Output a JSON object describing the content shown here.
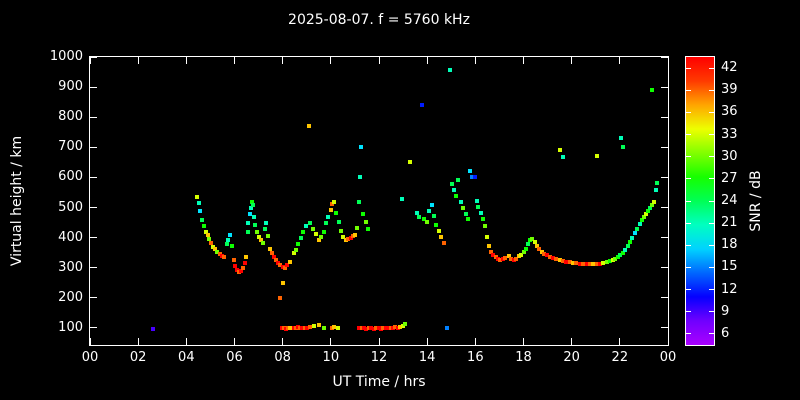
{
  "chart_data": {
    "type": "scatter",
    "title": "2025-08-07. f = 5760 kHz",
    "xlabel": "UT Time / hrs",
    "ylabel": "Virtual height / km",
    "colorbar_label": "SNR / dB",
    "x_range_hours": [
      0,
      24
    ],
    "y_range_km": [
      100,
      1000
    ],
    "x_tick_labels": [
      "00",
      "02",
      "04",
      "06",
      "08",
      "10",
      "12",
      "14",
      "16",
      "18",
      "20",
      "22",
      "00"
    ],
    "x_tick_values": [
      0,
      2,
      4,
      6,
      8,
      10,
      12,
      14,
      16,
      18,
      20,
      22,
      24
    ],
    "y_tick_values": [
      100,
      200,
      300,
      400,
      500,
      600,
      700,
      800,
      900,
      1000
    ],
    "colorbar_tick_values": [
      6,
      9,
      12,
      15,
      18,
      21,
      24,
      27,
      30,
      33,
      36,
      39,
      42
    ],
    "snr_scale_range": [
      4.5,
      43.5
    ],
    "colormap": "rainbow",
    "background_color": "#000000",
    "text_color": "#ffffff",
    "points_format": [
      "ut_hours",
      "virtual_height_km",
      "snr_db"
    ],
    "points": [
      [
        2.62,
        97,
        9
      ],
      [
        4.45,
        535,
        33
      ],
      [
        4.52,
        515,
        21
      ],
      [
        4.58,
        490,
        18
      ],
      [
        4.65,
        460,
        24
      ],
      [
        4.72,
        440,
        27
      ],
      [
        4.8,
        420,
        33
      ],
      [
        4.88,
        408,
        36
      ],
      [
        4.95,
        395,
        30
      ],
      [
        5.02,
        382,
        39
      ],
      [
        5.1,
        370,
        33
      ],
      [
        5.18,
        362,
        36
      ],
      [
        5.28,
        352,
        30
      ],
      [
        5.38,
        345,
        39
      ],
      [
        5.48,
        340,
        42
      ],
      [
        5.58,
        336,
        39
      ],
      [
        5.68,
        378,
        24
      ],
      [
        5.74,
        392,
        21
      ],
      [
        5.82,
        408,
        18
      ],
      [
        5.9,
        372,
        27
      ],
      [
        5.98,
        325,
        39
      ],
      [
        6.04,
        305,
        42
      ],
      [
        6.1,
        292,
        42
      ],
      [
        6.18,
        285,
        39
      ],
      [
        6.26,
        290,
        42
      ],
      [
        6.34,
        300,
        39
      ],
      [
        6.42,
        315,
        42
      ],
      [
        6.48,
        335,
        36
      ],
      [
        6.54,
        420,
        24
      ],
      [
        6.58,
        450,
        21
      ],
      [
        6.63,
        478,
        18
      ],
      [
        6.68,
        500,
        21
      ],
      [
        6.72,
        520,
        27
      ],
      [
        6.77,
        508,
        24
      ],
      [
        6.82,
        470,
        21
      ],
      [
        6.87,
        442,
        24
      ],
      [
        6.94,
        420,
        30
      ],
      [
        7.02,
        402,
        33
      ],
      [
        7.1,
        392,
        36
      ],
      [
        7.18,
        382,
        30
      ],
      [
        7.26,
        428,
        24
      ],
      [
        7.32,
        448,
        21
      ],
      [
        7.4,
        405,
        30
      ],
      [
        7.48,
        362,
        36
      ],
      [
        7.56,
        348,
        39
      ],
      [
        7.64,
        335,
        42
      ],
      [
        7.72,
        325,
        39
      ],
      [
        7.8,
        315,
        42
      ],
      [
        7.88,
        200,
        39
      ],
      [
        7.9,
        308,
        39
      ],
      [
        7.98,
        100,
        42
      ],
      [
        8,
        303,
        42
      ],
      [
        8.02,
        248,
        36
      ],
      [
        8.06,
        100,
        39
      ],
      [
        8.1,
        300,
        39
      ],
      [
        8.14,
        98,
        42
      ],
      [
        8.2,
        308,
        42
      ],
      [
        8.22,
        100,
        39
      ],
      [
        8.3,
        318,
        36
      ],
      [
        8.3,
        100,
        36
      ],
      [
        8.45,
        348,
        33
      ],
      [
        8.46,
        100,
        42
      ],
      [
        8.54,
        100,
        39
      ],
      [
        8.55,
        360,
        30
      ],
      [
        8.62,
        102,
        42
      ],
      [
        8.65,
        380,
        27
      ],
      [
        8.72,
        100,
        39
      ],
      [
        8.76,
        400,
        24
      ],
      [
        8.82,
        100,
        42
      ],
      [
        8.86,
        418,
        27
      ],
      [
        8.92,
        100,
        39
      ],
      [
        8.96,
        438,
        21
      ],
      [
        9.02,
        100,
        42
      ],
      [
        9.08,
        770,
        36
      ],
      [
        9.12,
        104,
        39
      ],
      [
        9.14,
        448,
        24
      ],
      [
        9.26,
        430,
        30
      ],
      [
        9.32,
        108,
        33
      ],
      [
        9.38,
        412,
        33
      ],
      [
        9.5,
        392,
        36
      ],
      [
        9.52,
        110,
        36
      ],
      [
        9.6,
        402,
        30
      ],
      [
        9.7,
        420,
        27
      ],
      [
        9.72,
        100,
        30
      ],
      [
        9.8,
        448,
        24
      ],
      [
        9.9,
        468,
        21
      ],
      [
        10,
        492,
        36
      ],
      [
        10.05,
        100,
        39
      ],
      [
        10.06,
        512,
        39
      ],
      [
        10.12,
        520,
        33
      ],
      [
        10.15,
        102,
        36
      ],
      [
        10.22,
        482,
        27
      ],
      [
        10.3,
        100,
        33
      ],
      [
        10.32,
        452,
        24
      ],
      [
        10.42,
        422,
        30
      ],
      [
        10.52,
        402,
        33
      ],
      [
        10.62,
        392,
        36
      ],
      [
        10.72,
        396,
        39
      ],
      [
        10.82,
        400,
        42
      ],
      [
        10.92,
        406,
        39
      ],
      [
        11.02,
        410,
        36
      ],
      [
        11.1,
        432,
        30
      ],
      [
        11.16,
        520,
        24
      ],
      [
        11.18,
        100,
        42
      ],
      [
        11.22,
        602,
        21
      ],
      [
        11.27,
        700,
        18
      ],
      [
        11.28,
        100,
        39
      ],
      [
        11.34,
        480,
        27
      ],
      [
        11.38,
        100,
        42
      ],
      [
        11.44,
        452,
        30
      ],
      [
        11.48,
        98,
        42
      ],
      [
        11.54,
        430,
        27
      ],
      [
        11.58,
        100,
        39
      ],
      [
        11.68,
        100,
        42
      ],
      [
        11.78,
        97,
        42
      ],
      [
        11.88,
        100,
        39
      ],
      [
        11.98,
        100,
        42
      ],
      [
        12.08,
        98,
        42
      ],
      [
        12.18,
        100,
        39
      ],
      [
        12.28,
        100,
        42
      ],
      [
        12.38,
        100,
        42
      ],
      [
        12.48,
        100,
        39
      ],
      [
        12.58,
        100,
        42
      ],
      [
        12.68,
        102,
        39
      ],
      [
        12.78,
        100,
        42
      ],
      [
        12.88,
        104,
        36
      ],
      [
        12.95,
        528,
        21
      ],
      [
        12.98,
        108,
        33
      ],
      [
        13.08,
        112,
        30
      ],
      [
        13.3,
        652,
        33
      ],
      [
        13.58,
        482,
        21
      ],
      [
        13.68,
        470,
        24
      ],
      [
        13.78,
        840,
        12
      ],
      [
        13.88,
        462,
        27
      ],
      [
        13.98,
        452,
        30
      ],
      [
        14.08,
        488,
        21
      ],
      [
        14.18,
        510,
        18
      ],
      [
        14.28,
        472,
        24
      ],
      [
        14.38,
        442,
        27
      ],
      [
        14.48,
        422,
        33
      ],
      [
        14.58,
        402,
        36
      ],
      [
        14.68,
        382,
        39
      ],
      [
        14.82,
        100,
        15
      ],
      [
        14.95,
        958,
        21
      ],
      [
        15.02,
        578,
        24
      ],
      [
        15.1,
        558,
        21
      ],
      [
        15.2,
        540,
        27
      ],
      [
        15.3,
        590,
        24
      ],
      [
        15.4,
        520,
        21
      ],
      [
        15.5,
        500,
        30
      ],
      [
        15.6,
        480,
        24
      ],
      [
        15.7,
        462,
        27
      ],
      [
        15.76,
        620,
        18
      ],
      [
        15.86,
        600,
        15
      ],
      [
        16,
        600,
        12
      ],
      [
        16.05,
        522,
        21
      ],
      [
        16.12,
        502,
        24
      ],
      [
        16.22,
        482,
        21
      ],
      [
        16.32,
        462,
        27
      ],
      [
        16.42,
        440,
        30
      ],
      [
        16.5,
        402,
        33
      ],
      [
        16.58,
        372,
        36
      ],
      [
        16.66,
        352,
        39
      ],
      [
        16.74,
        342,
        42
      ],
      [
        16.84,
        336,
        39
      ],
      [
        16.94,
        330,
        42
      ],
      [
        17.04,
        326,
        39
      ],
      [
        17.14,
        330,
        42
      ],
      [
        17.24,
        334,
        39
      ],
      [
        17.38,
        338,
        36
      ],
      [
        17.5,
        330,
        39
      ],
      [
        17.6,
        326,
        42
      ],
      [
        17.7,
        330,
        39
      ],
      [
        17.8,
        338,
        36
      ],
      [
        17.9,
        344,
        33
      ],
      [
        18,
        352,
        30
      ],
      [
        18.1,
        362,
        27
      ],
      [
        18.2,
        380,
        24
      ],
      [
        18.28,
        392,
        27
      ],
      [
        18.36,
        396,
        30
      ],
      [
        18.46,
        386,
        33
      ],
      [
        18.56,
        372,
        36
      ],
      [
        18.66,
        362,
        39
      ],
      [
        18.76,
        352,
        36
      ],
      [
        18.86,
        346,
        39
      ],
      [
        18.96,
        341,
        42
      ],
      [
        19.08,
        336,
        39
      ],
      [
        19.22,
        332,
        42
      ],
      [
        19.36,
        330,
        39
      ],
      [
        19.5,
        327,
        36
      ],
      [
        19.52,
        690,
        33
      ],
      [
        19.62,
        668,
        21
      ],
      [
        19.64,
        322,
        39
      ],
      [
        19.78,
        320,
        42
      ],
      [
        19.92,
        318,
        39
      ],
      [
        20.06,
        316,
        36
      ],
      [
        20.2,
        315,
        39
      ],
      [
        20.34,
        314,
        42
      ],
      [
        20.48,
        312,
        39
      ],
      [
        20.62,
        311,
        42
      ],
      [
        20.76,
        312,
        39
      ],
      [
        20.9,
        314,
        36
      ],
      [
        21.04,
        311,
        39
      ],
      [
        21.05,
        672,
        33
      ],
      [
        21.18,
        312,
        42
      ],
      [
        21.32,
        315,
        33
      ],
      [
        21.46,
        318,
        30
      ],
      [
        21.58,
        321,
        27
      ],
      [
        21.7,
        325,
        33
      ],
      [
        21.82,
        330,
        30
      ],
      [
        21.94,
        336,
        27
      ],
      [
        22.02,
        342,
        24
      ],
      [
        22.05,
        730,
        21
      ],
      [
        22.12,
        350,
        27
      ],
      [
        22.15,
        702,
        24
      ],
      [
        22.22,
        360,
        21
      ],
      [
        22.32,
        372,
        24
      ],
      [
        22.42,
        386,
        27
      ],
      [
        22.52,
        400,
        21
      ],
      [
        22.62,
        415,
        18
      ],
      [
        22.72,
        430,
        24
      ],
      [
        22.82,
        445,
        21
      ],
      [
        22.92,
        458,
        27
      ],
      [
        23.02,
        470,
        30
      ],
      [
        23.1,
        480,
        33
      ],
      [
        23.18,
        490,
        27
      ],
      [
        23.26,
        498,
        24
      ],
      [
        23.34,
        508,
        30
      ],
      [
        23.35,
        890,
        27
      ],
      [
        23.42,
        520,
        33
      ],
      [
        23.5,
        558,
        21
      ],
      [
        23.56,
        582,
        24
      ]
    ]
  }
}
